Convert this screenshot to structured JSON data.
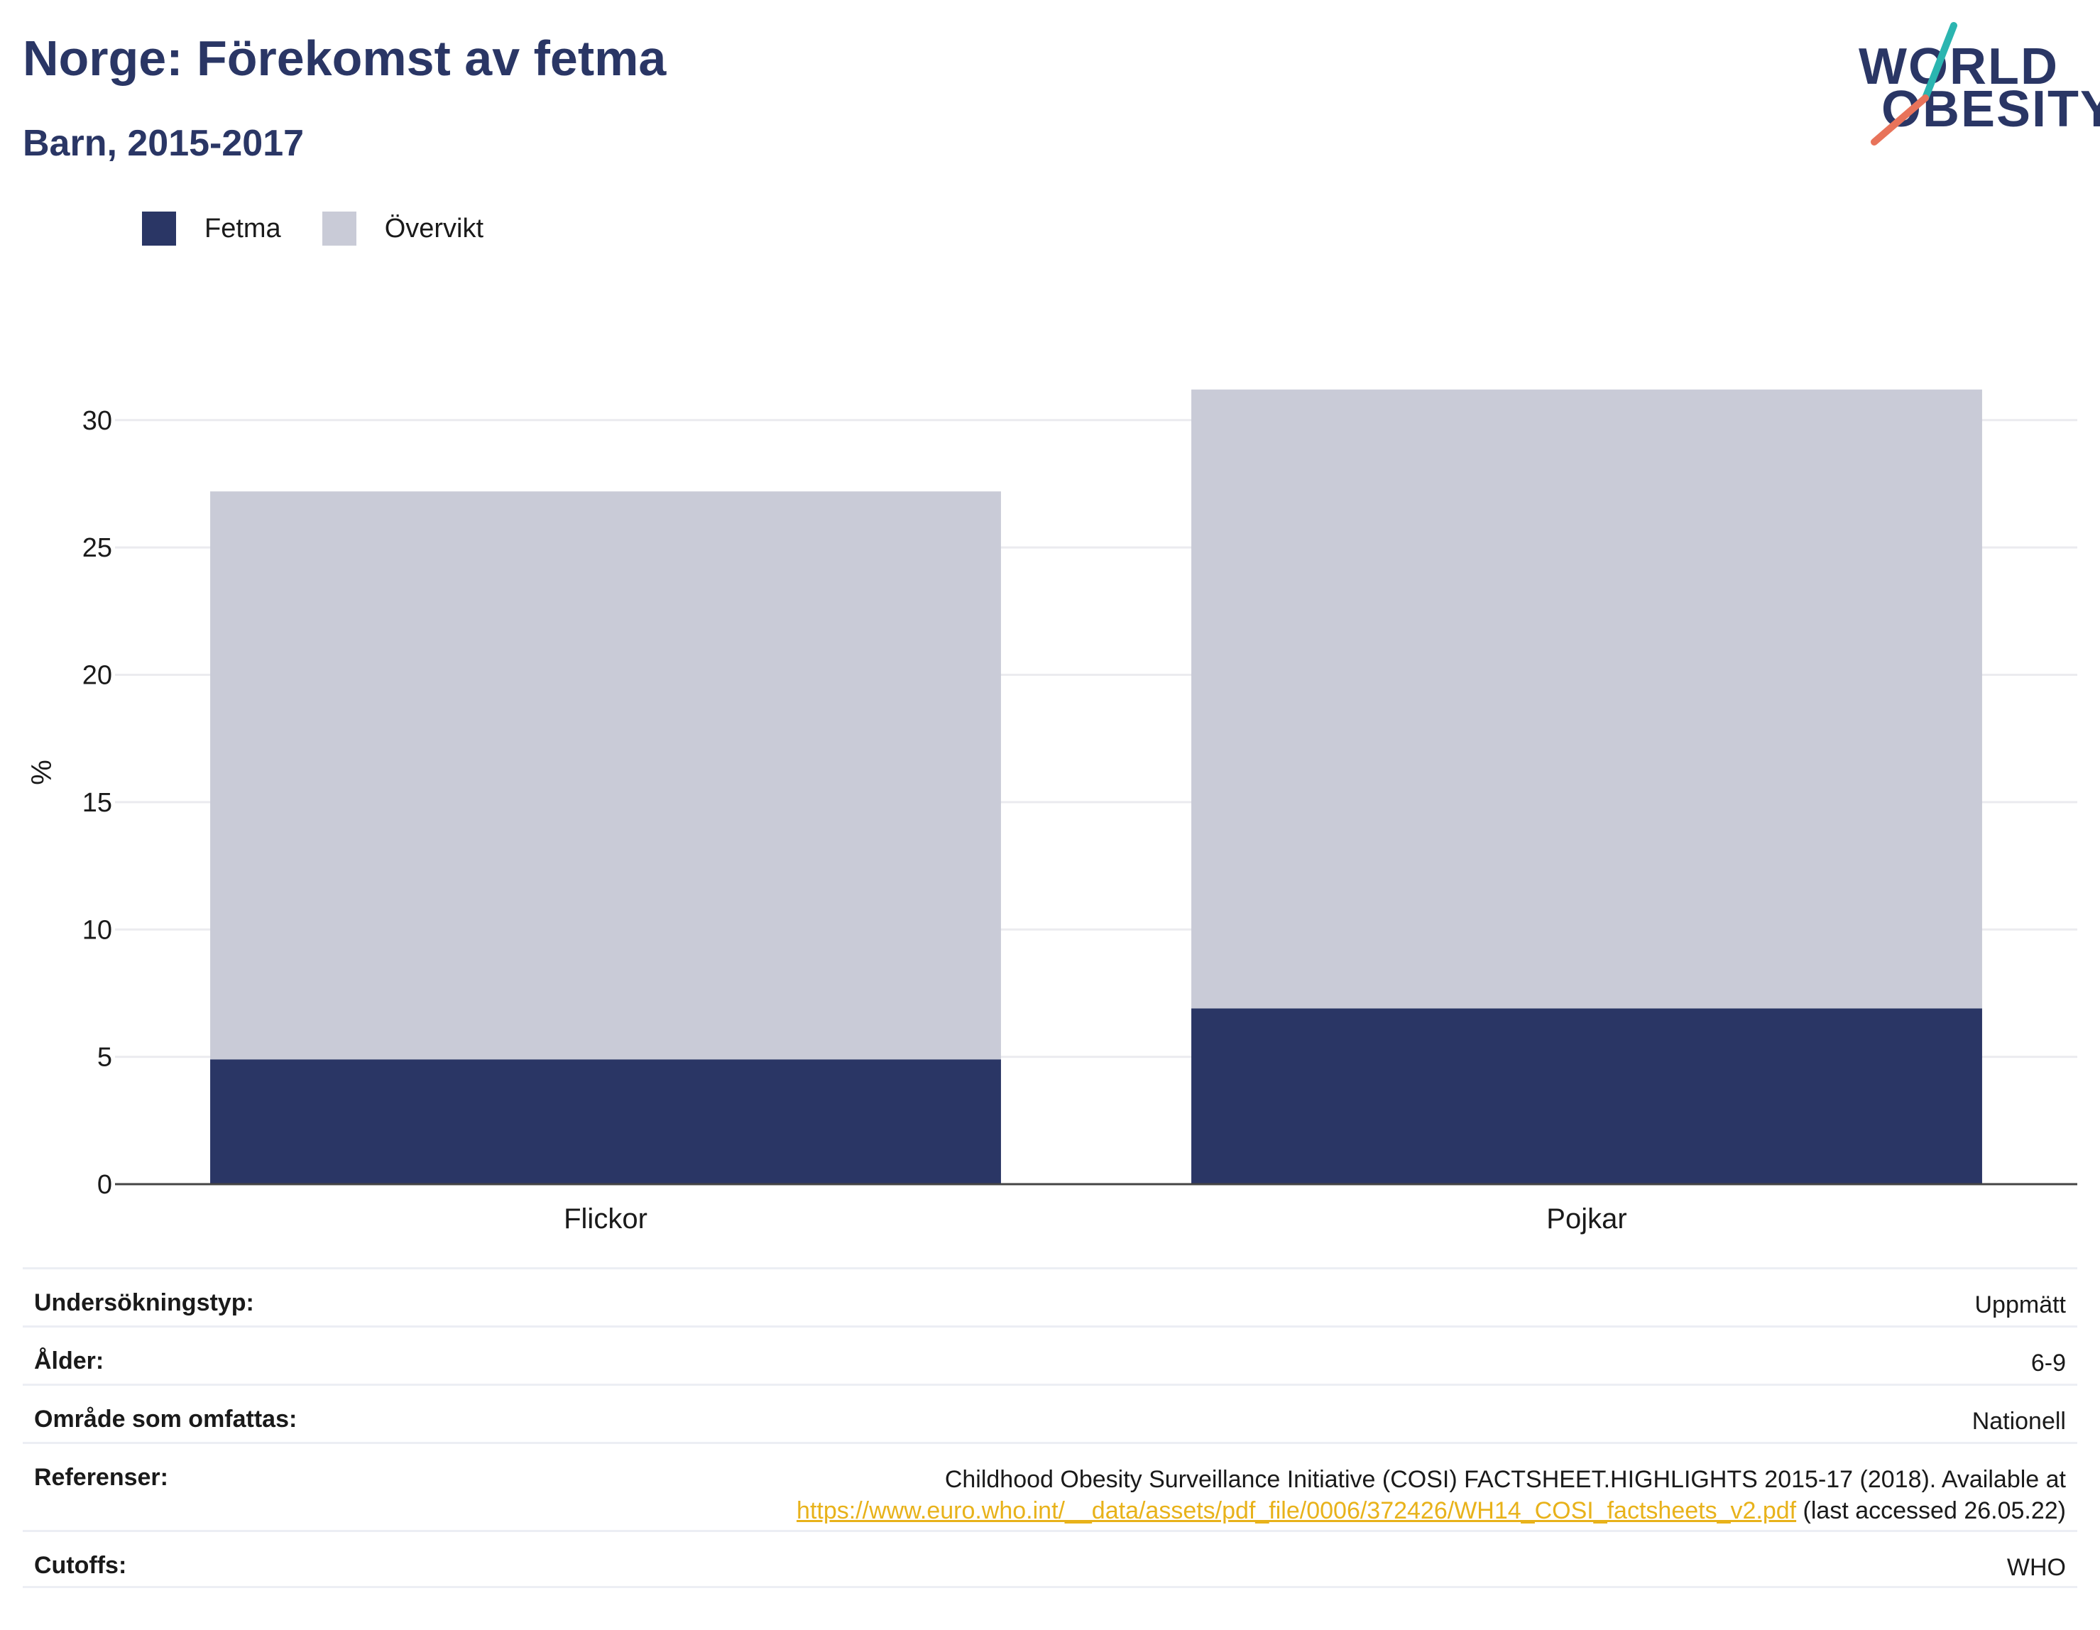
{
  "header": {
    "title": "Norge: Förekomst av fetma",
    "subtitle": "Barn, 2015-2017"
  },
  "logo": {
    "line1": "WORLD",
    "line2": "OBESITY",
    "colors": {
      "text": "#2a3665",
      "slash_top": "#2bb5b0",
      "slash_bottom": "#e8735a"
    }
  },
  "legend": {
    "items": [
      {
        "label": "Fetma",
        "color": "#2a3665"
      },
      {
        "label": "Övervikt",
        "color": "#c9cbd7"
      }
    ]
  },
  "chart_data": {
    "type": "bar",
    "stacked": true,
    "categories": [
      "Flickor",
      "Pojkar"
    ],
    "series": [
      {
        "name": "Fetma",
        "values": [
          4.9,
          6.9
        ],
        "color": "#2a3665"
      },
      {
        "name": "Övervikt",
        "values": [
          22.3,
          24.3
        ],
        "color": "#c9cbd7"
      }
    ],
    "ylabel": "%",
    "ylim": [
      0,
      32
    ],
    "yticks": [
      0,
      5,
      10,
      15,
      20,
      25,
      30
    ],
    "grid": true,
    "legend_position": "top-left"
  },
  "info": {
    "rows": [
      {
        "label": "Undersökningstyp:",
        "value": "Uppmätt"
      },
      {
        "label": "Ålder:",
        "value": "6-9"
      },
      {
        "label": "Område som omfattas:",
        "value": "Nationell"
      },
      {
        "label": "Referenser:",
        "value_line1": "Childhood Obesity Surveillance Initiative (COSI) FACTSHEET.HIGHLIGHTS 2015-17 (2018). Available at",
        "link": "https://www.euro.who.int/__data/assets/pdf_file/0006/372426/WH14_COSI_factsheets_v2.pdf",
        "after_link": " (last accessed 26.05.22)"
      },
      {
        "label": "Cutoffs:",
        "value": "WHO"
      }
    ]
  }
}
